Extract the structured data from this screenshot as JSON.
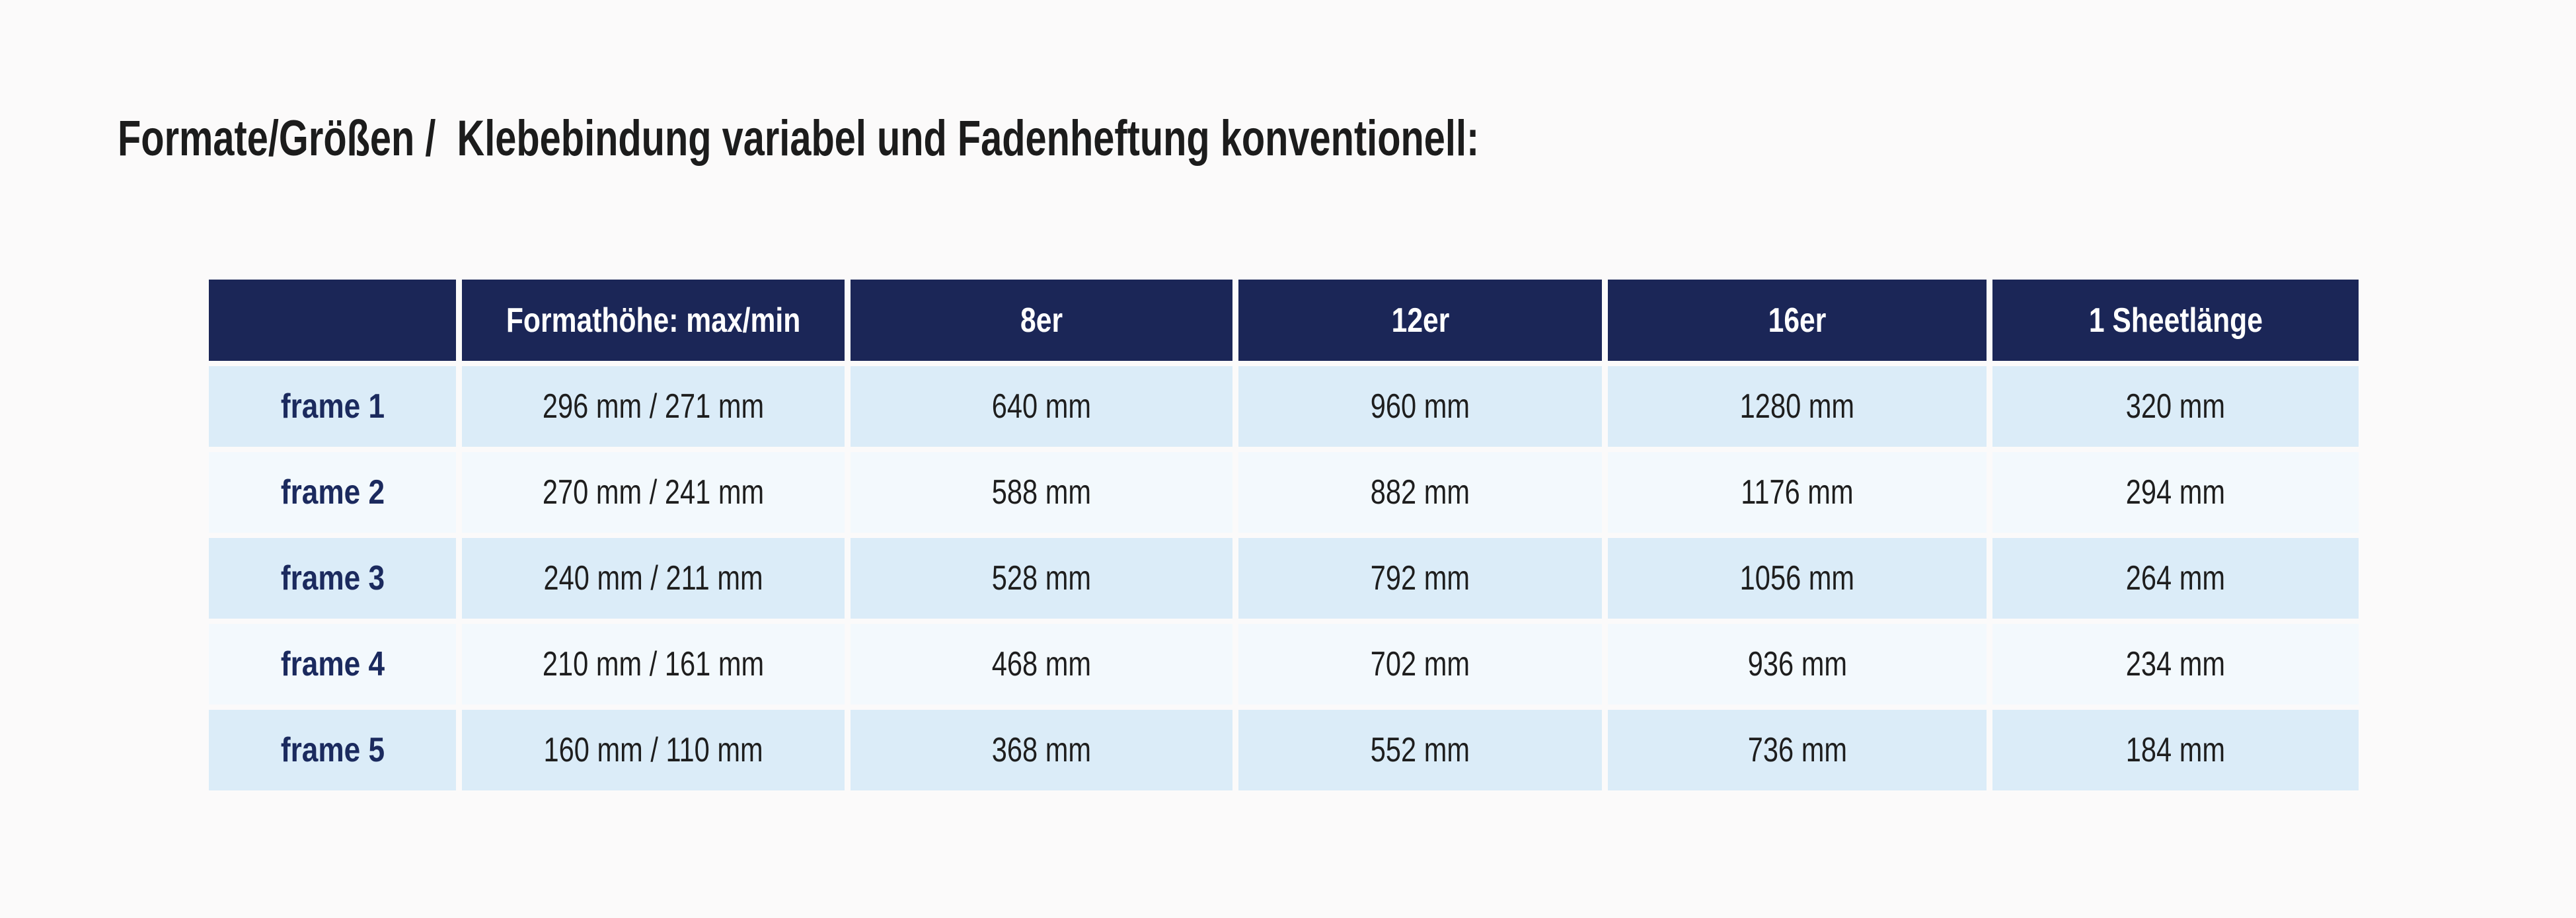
{
  "page": {
    "title": "Formate/Größen /  Klebebindung variabel und Fadenheftung konventionell:"
  },
  "colors": {
    "header_background": "#1b2657",
    "header_text": "#ffffff",
    "row_light_blue": "#dbecf8",
    "row_pale": "#f3f9fd",
    "label_text": "#1b2a5e",
    "value_text": "#1e1e1e",
    "page_background": "#fbfafa"
  },
  "table": {
    "columns": [
      "",
      "Formathöhe: max/min",
      "8er",
      "12er",
      "16er",
      "1 Sheetlänge"
    ],
    "rows": [
      {
        "label": "frame 1",
        "cells": [
          "296 mm / 271 mm",
          "640 mm",
          "960 mm",
          "1280 mm",
          "320 mm"
        ]
      },
      {
        "label": "frame 2",
        "cells": [
          "270 mm / 241 mm",
          "588 mm",
          "882 mm",
          "1176 mm",
          "294 mm"
        ]
      },
      {
        "label": "frame 3",
        "cells": [
          "240 mm / 211 mm",
          "528 mm",
          "792 mm",
          "1056 mm",
          "264 mm"
        ]
      },
      {
        "label": "frame 4",
        "cells": [
          "210 mm / 161 mm",
          "468 mm",
          "702 mm",
          "936 mm",
          "234 mm"
        ]
      },
      {
        "label": "frame 5",
        "cells": [
          "160 mm / 110 mm",
          "368 mm",
          "552 mm",
          "736 mm",
          "184 mm"
        ]
      }
    ]
  }
}
